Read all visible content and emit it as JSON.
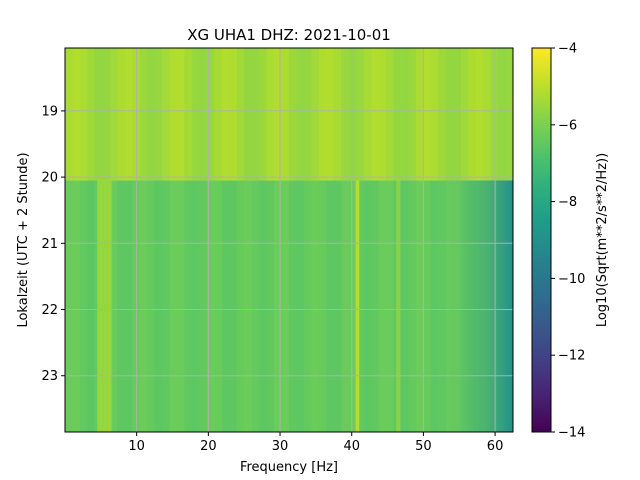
{
  "chart_data": {
    "type": "heatmap",
    "title": "XG UHA1  DHZ: 2021-10-01",
    "xlabel": "Frequency [Hz]",
    "ylabel": "Lokalzeit (UTC + 2 Stunde)",
    "colorbar_label": "Log10(Sqrt(m**2/s**2/Hz))",
    "colormap": "viridis",
    "grid": true,
    "x_range": [
      0.0,
      62.5
    ],
    "y_range": [
      18.05,
      23.85
    ],
    "y_inverted": true,
    "color_range": [
      -14,
      -4
    ],
    "x_ticks": [
      10,
      20,
      30,
      40,
      50,
      60
    ],
    "y_ticks": [
      19,
      20,
      21,
      22,
      23
    ],
    "colorbar_ticks": [
      -4,
      -6,
      -8,
      -10,
      -12,
      -14
    ],
    "x_tick_labels": [
      "10",
      "20",
      "30",
      "40",
      "50",
      "60"
    ],
    "y_tick_labels": [
      "19",
      "20",
      "21",
      "22",
      "23"
    ],
    "colorbar_tick_labels": [
      "−4",
      "−6",
      "−8",
      "−10",
      "−12",
      "−14"
    ],
    "periods": [
      {
        "from": 18.05,
        "to": 20.05,
        "level": "noisy",
        "mean_value": -5.4
      },
      {
        "from": 20.05,
        "to": 23.85,
        "level": "quiet",
        "mean_value": -6.4
      }
    ],
    "spectral_lines": [
      {
        "frequency": 5.5,
        "description": "broad band",
        "approx_value": -5.5
      },
      {
        "frequency": 40.8,
        "description": "narrow line",
        "approx_value": -5.0
      },
      {
        "frequency": 46.5,
        "description": "intermittent",
        "approx_value": -5.3
      }
    ],
    "high_frequency_rolloff": {
      "start": 52,
      "end": 62.5,
      "value_at_end": -9.0
    }
  }
}
